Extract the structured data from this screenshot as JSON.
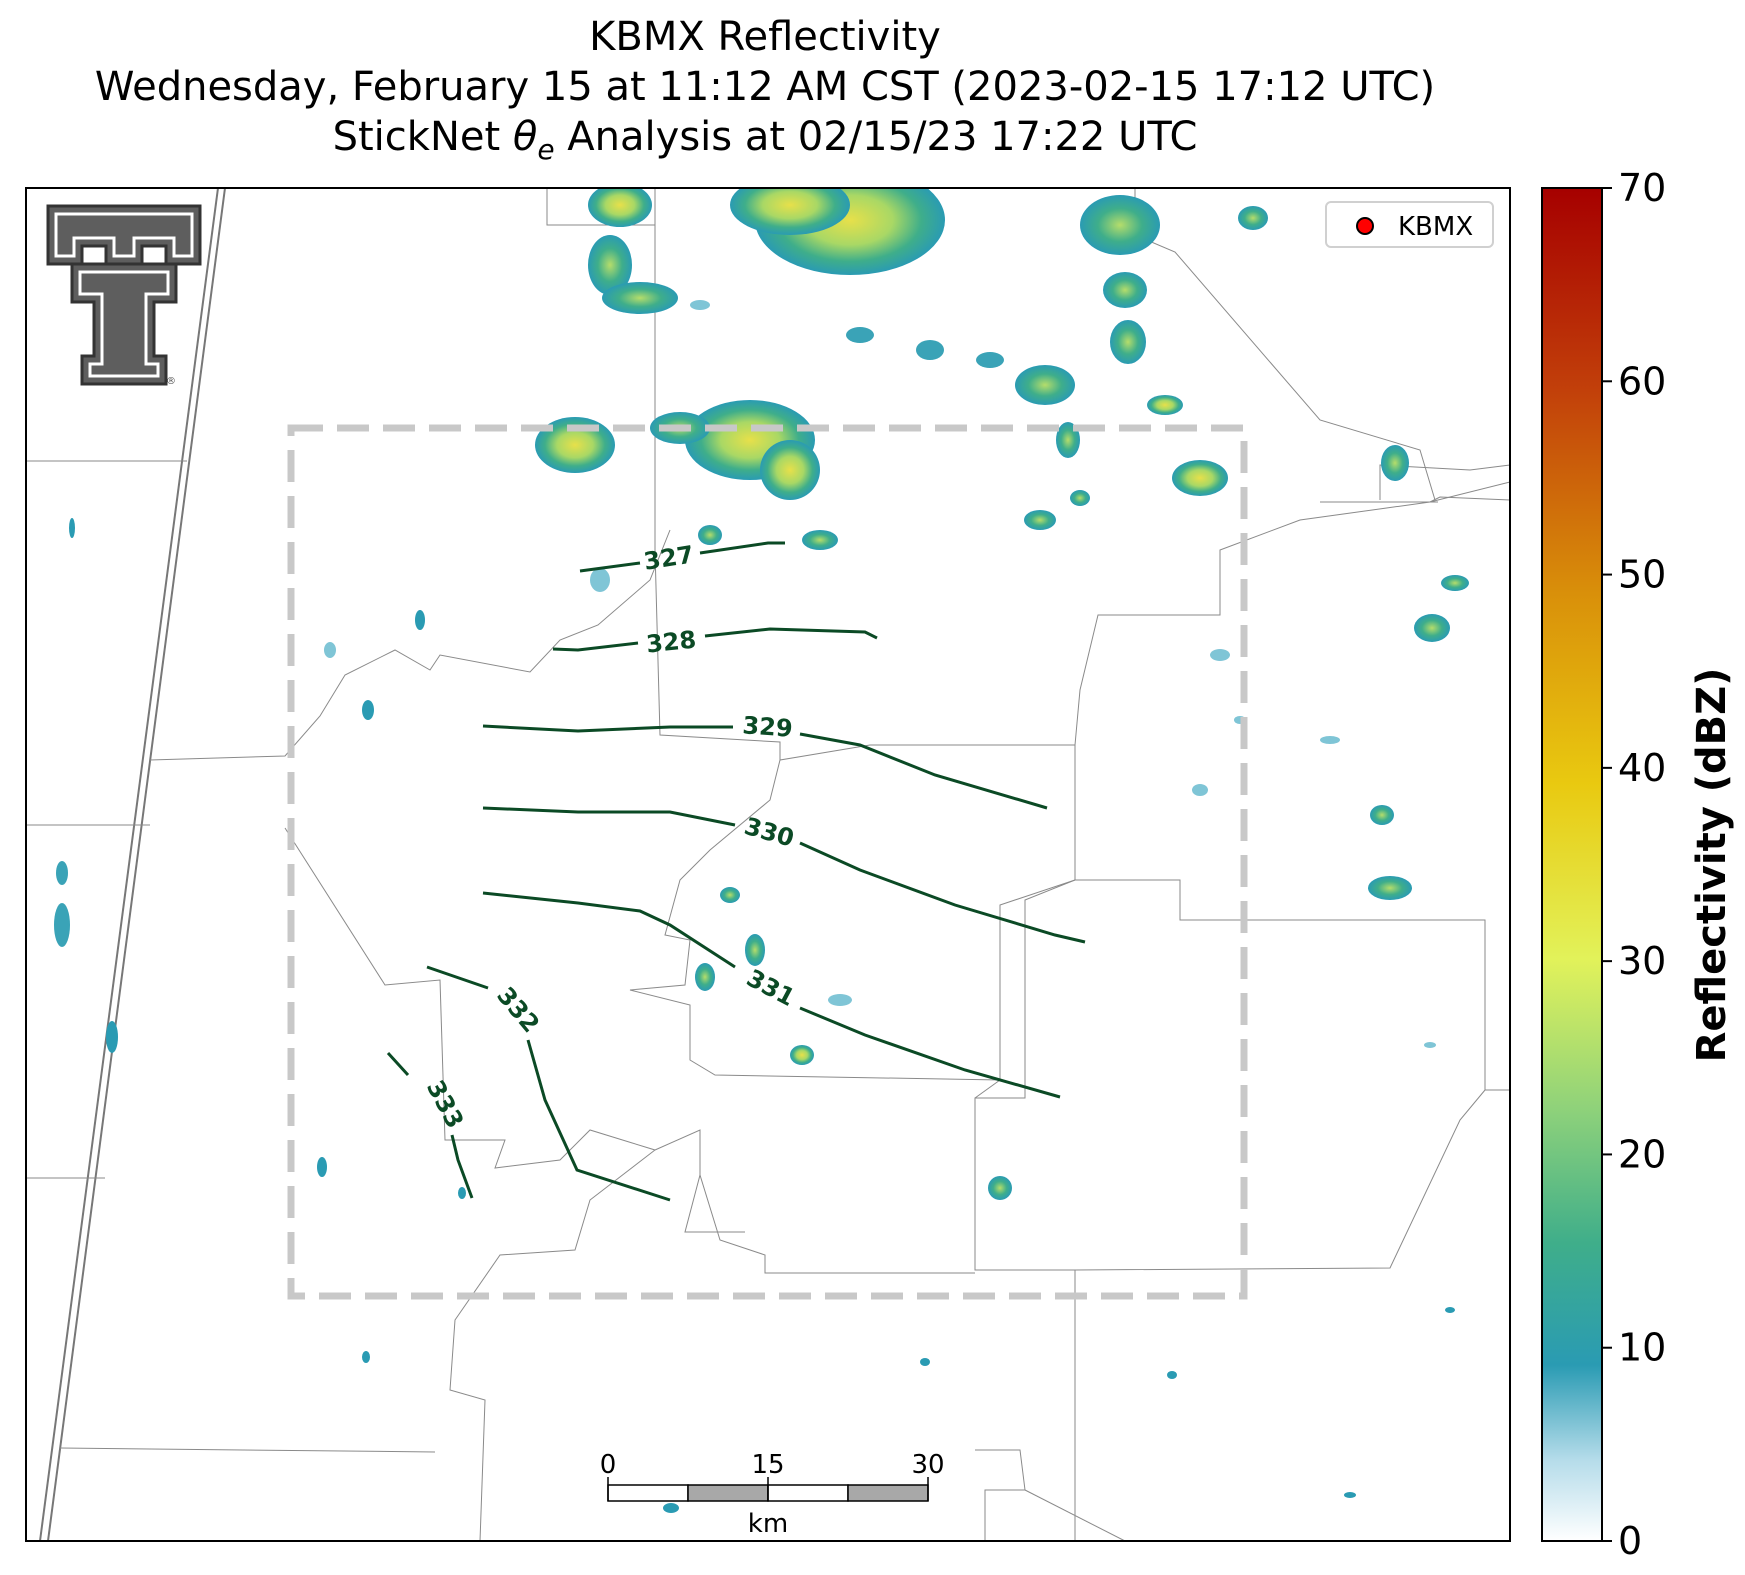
{
  "titles": {
    "line1": "KBMX Reflectivity",
    "line2": "Wednesday, February 15 at 11:12 AM CST (2023-02-15 17:12 UTC)",
    "line3_prefix": "StickNet ",
    "line3_theta": "θ",
    "line3_sub": "e",
    "line3_suffix": " Analysis at 02/15/23 17:22 UTC"
  },
  "legend": {
    "marker_color": "#ff0000",
    "label": "KBMX"
  },
  "logo": {
    "name": "Texas Tech Double T",
    "registered": "®"
  },
  "colorbar": {
    "label": "Reflectivity (dBZ)",
    "min": 0,
    "max": 70,
    "ticks": [
      "0",
      "10",
      "20",
      "30",
      "40",
      "50",
      "60",
      "70"
    ],
    "colors": [
      "#ffffff",
      "#b5dcea",
      "#2a9bb3",
      "#3fae8a",
      "#8fd27a",
      "#e2f25a",
      "#e9c910",
      "#d9900a",
      "#c2400a",
      "#a60000"
    ]
  },
  "scalebar": {
    "ticks": [
      "0",
      "15",
      "30"
    ],
    "unit": "km"
  },
  "contours": {
    "color": "#0b4a25",
    "levels": [
      {
        "label": "327",
        "value": 327
      },
      {
        "label": "328",
        "value": 328
      },
      {
        "label": "329",
        "value": 329
      },
      {
        "label": "330",
        "value": 330
      },
      {
        "label": "331",
        "value": 331
      },
      {
        "label": "332",
        "value": 332
      },
      {
        "label": "333",
        "value": 333
      }
    ]
  },
  "analysis_box": {
    "style": "dashed",
    "color": "#c8c8c8"
  }
}
